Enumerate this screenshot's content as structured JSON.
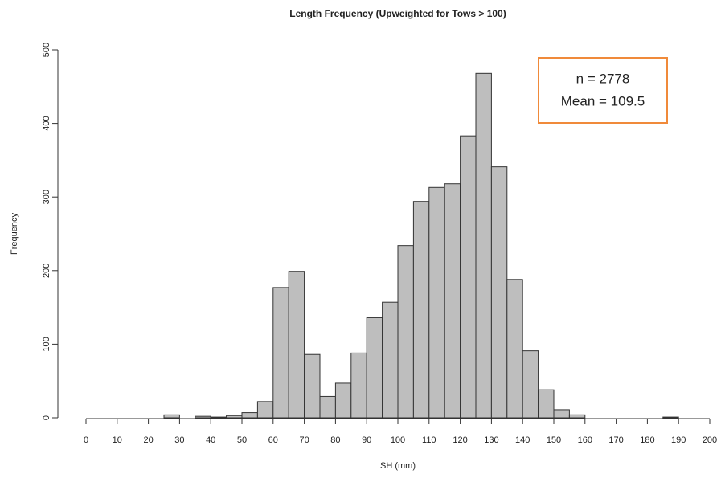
{
  "chart_data": {
    "type": "histogram",
    "title": "Length Frequency (Upweighted for Tows > 100)",
    "x_label": "SH (mm)",
    "y_label": "Frequency",
    "bins": [
      0,
      5,
      10,
      15,
      20,
      25,
      30,
      35,
      40,
      45,
      50,
      55,
      60,
      65,
      70,
      75,
      80,
      85,
      90,
      95,
      100,
      105,
      110,
      115,
      120,
      125,
      130,
      135,
      140,
      145,
      150,
      155,
      160,
      165,
      170,
      175,
      180,
      185,
      190,
      195,
      200
    ],
    "values": [
      0,
      0,
      0,
      0,
      0,
      4,
      0,
      2,
      1,
      3,
      7,
      22,
      177,
      199,
      86,
      29,
      47,
      88,
      136,
      157,
      234,
      294,
      313,
      318,
      383,
      468,
      341,
      188,
      91,
      38,
      11,
      4,
      0,
      0,
      0,
      0,
      0,
      1,
      0,
      0
    ],
    "color": "#bebebe",
    "xlim": [
      0,
      200
    ],
    "xticks": [
      0,
      10,
      20,
      30,
      40,
      50,
      60,
      70,
      80,
      90,
      100,
      110,
      120,
      130,
      140,
      150,
      160,
      170,
      180,
      190,
      200
    ],
    "ylim": [
      0,
      500
    ],
    "yticks": [
      0,
      100,
      200,
      300,
      400,
      500
    ],
    "annotations": [
      "n = 2778",
      "Mean = 109.5"
    ],
    "annotation_border_color": "#f08a3a"
  }
}
